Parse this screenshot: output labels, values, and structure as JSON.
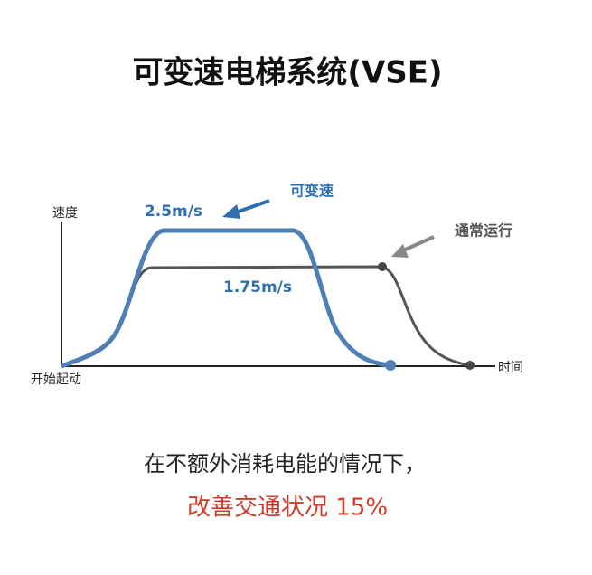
{
  "title": "可变速电梯系统(VSE)",
  "chart": {
    "y_axis_label": "速度",
    "x_axis_label": "时间",
    "origin_label": "开始起动",
    "vse_speed": "2.5m/s",
    "normal_speed": "1.75m/s",
    "vse_label": "可变速",
    "normal_label": "通常运行"
  },
  "caption": {
    "line1": "在不额外消耗电能的情况下，",
    "line2": "改善交通状况 15%"
  }
}
